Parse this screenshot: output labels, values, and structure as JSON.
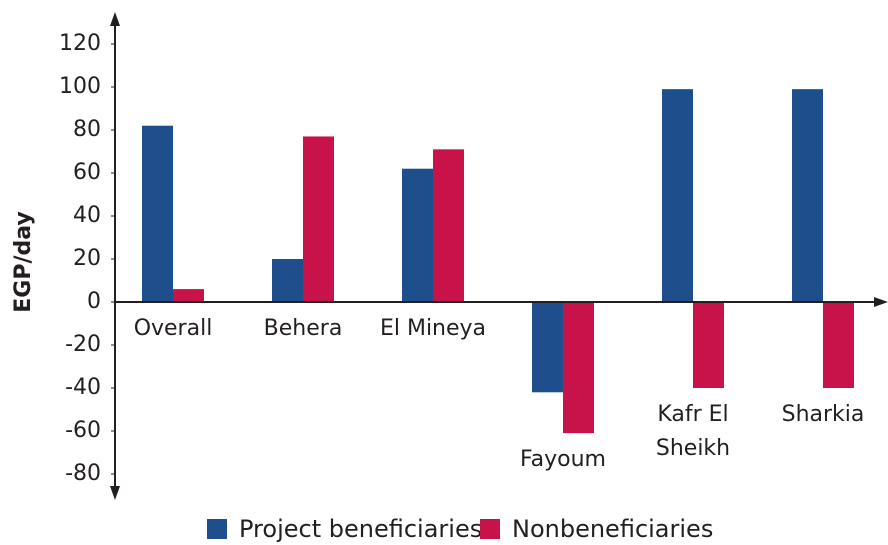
{
  "chart_data": {
    "type": "bar",
    "y_label": "EGP/day",
    "categories": [
      "Overall",
      "Behera",
      "El Mineya",
      "Fayoum",
      "Kafr El Sheikh",
      "Sharkia"
    ],
    "series": [
      {
        "name": "Project beneficiaries",
        "color": "#1f4e8c",
        "values": [
          82,
          20,
          62,
          -42,
          99,
          99
        ]
      },
      {
        "name": "Nonbeneficiaries",
        "color": "#c8134a",
        "values": [
          6,
          77,
          71,
          -61,
          -40,
          -40
        ]
      }
    ],
    "ylim": [
      -80,
      120
    ],
    "yticks": [
      -80,
      -60,
      -40,
      -20,
      0,
      20,
      40,
      60,
      80,
      100,
      120
    ]
  }
}
